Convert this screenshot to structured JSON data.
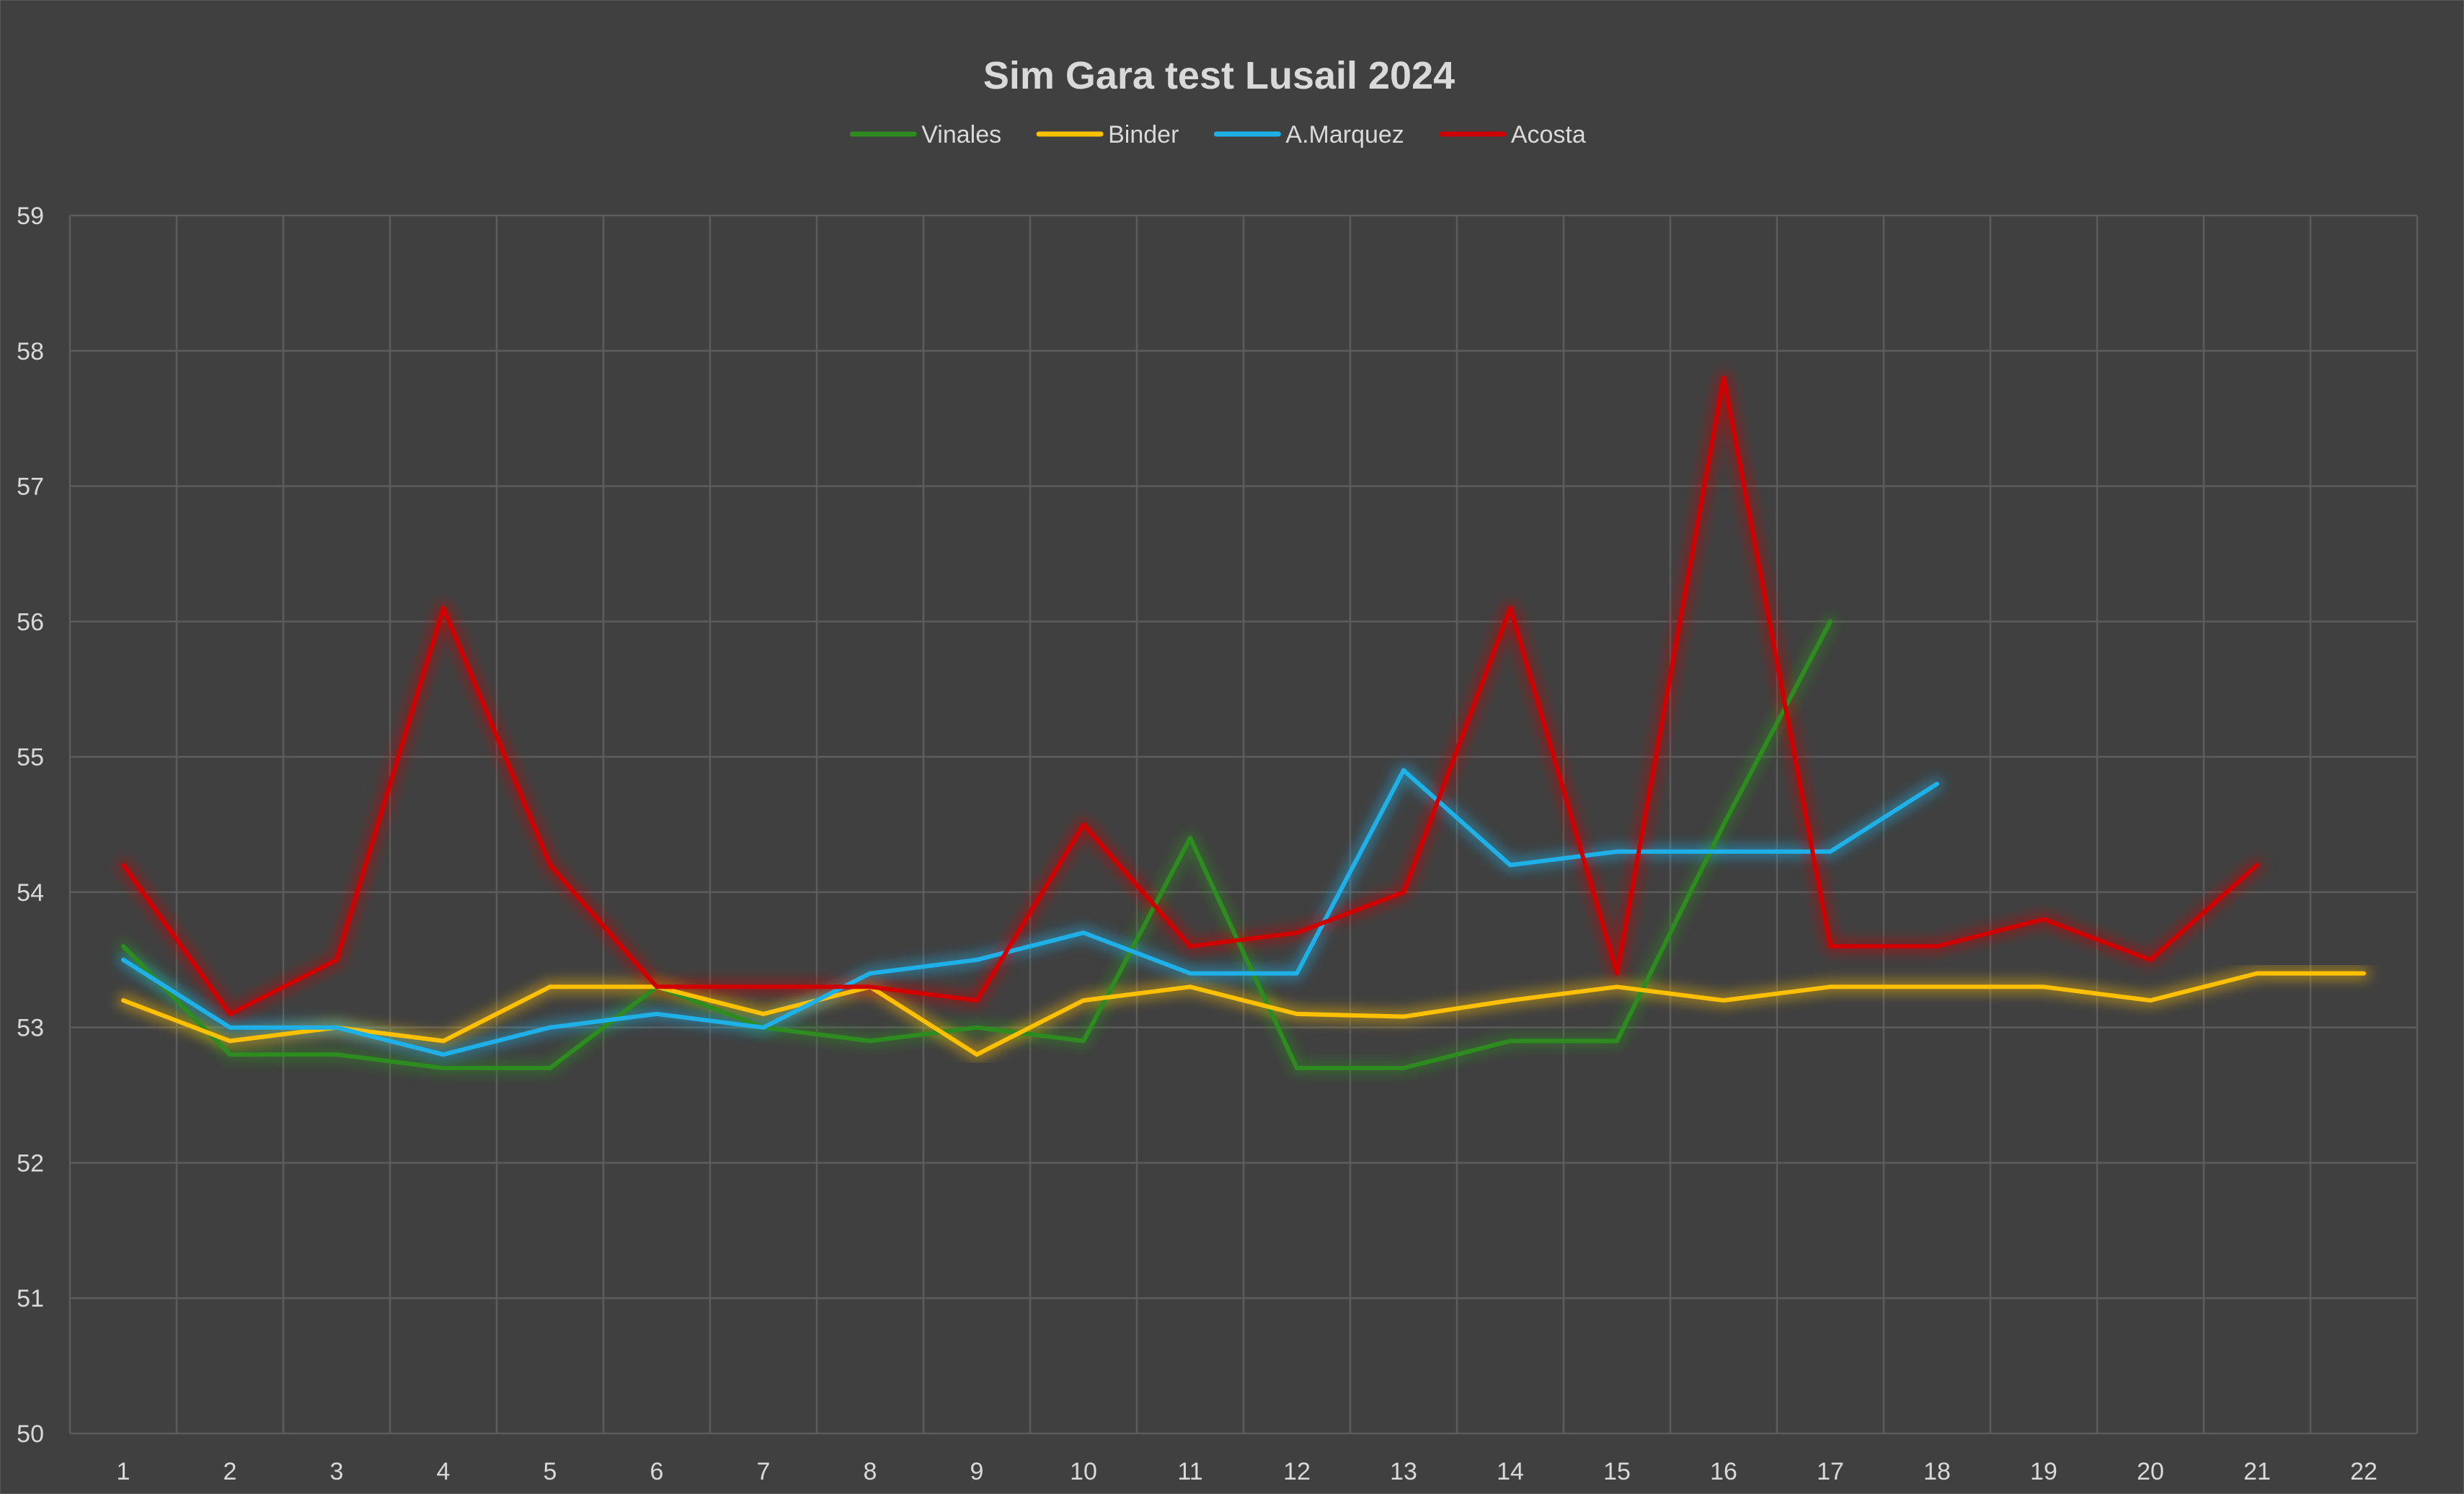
{
  "chart_data": {
    "type": "line",
    "title": "Sim Gara test Lusail 2024",
    "xlabel": "",
    "ylabel": "",
    "x": [
      1,
      2,
      3,
      4,
      5,
      6,
      7,
      8,
      9,
      10,
      11,
      12,
      13,
      14,
      15,
      16,
      17,
      18,
      19,
      20,
      21,
      22
    ],
    "ylim": [
      50,
      59
    ],
    "yticks": [
      50,
      51,
      52,
      53,
      54,
      55,
      56,
      57,
      58,
      59
    ],
    "grid": true,
    "legend_position": "top",
    "series": [
      {
        "name": "Vinales",
        "color": "#2e8b20",
        "values": [
          53.6,
          52.8,
          52.8,
          52.7,
          52.7,
          53.3,
          53.0,
          52.9,
          53.0,
          52.9,
          54.4,
          52.7,
          52.7,
          52.9,
          52.9,
          54.5,
          56.0,
          null,
          null,
          null,
          null,
          null
        ]
      },
      {
        "name": "Binder",
        "color": "#ffc000",
        "values": [
          53.2,
          52.9,
          53.0,
          52.9,
          53.3,
          53.3,
          53.1,
          53.3,
          52.8,
          53.2,
          53.3,
          53.1,
          53.08,
          53.2,
          53.3,
          53.2,
          53.3,
          53.3,
          53.3,
          53.2,
          53.4,
          53.4
        ]
      },
      {
        "name": "A.Marquez",
        "color": "#1fb0e8",
        "values": [
          53.5,
          53.0,
          53.0,
          52.8,
          53.0,
          53.1,
          53.0,
          53.4,
          53.5,
          53.7,
          53.4,
          53.4,
          54.9,
          54.2,
          54.3,
          54.3,
          54.3,
          54.8,
          null,
          null,
          null,
          null
        ]
      },
      {
        "name": "Acosta",
        "color": "#d00000",
        "values": [
          54.2,
          53.1,
          53.5,
          56.1,
          54.2,
          53.3,
          53.3,
          53.3,
          53.2,
          54.5,
          53.6,
          53.7,
          54.0,
          56.1,
          53.4,
          57.8,
          53.6,
          53.6,
          53.8,
          53.5,
          54.2,
          null
        ]
      }
    ]
  }
}
